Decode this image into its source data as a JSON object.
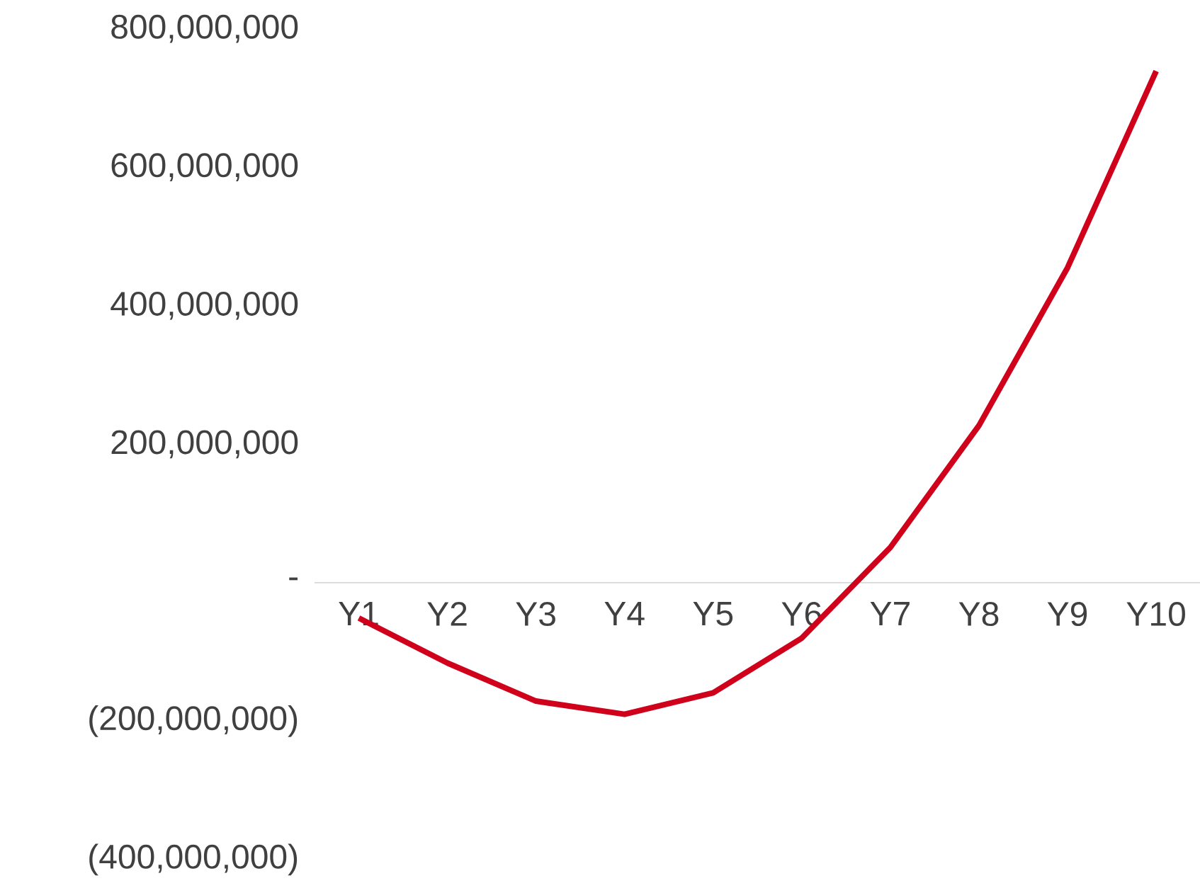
{
  "chart_data": {
    "type": "line",
    "categories": [
      "Y1",
      "Y2",
      "Y3",
      "Y4",
      "Y5",
      "Y6",
      "Y7",
      "Y8",
      "Y9",
      "Y10"
    ],
    "series": [
      {
        "color": "#d0021b",
        "values": [
          -51000000,
          -116000000,
          -171000000,
          -190000000,
          -159000000,
          -80000000,
          51000000,
          227000000,
          455000000,
          739000000
        ]
      }
    ],
    "ylim": [
      -400000000,
      800000000
    ],
    "yticks": [
      {
        "value": -400000000,
        "label": "(400,000,000)"
      },
      {
        "value": -200000000,
        "label": "(200,000,000)"
      },
      {
        "value": 0,
        "label": "-"
      },
      {
        "value": 200000000,
        "label": "200,000,000"
      },
      {
        "value": 400000000,
        "label": "400,000,000"
      },
      {
        "value": 600000000,
        "label": "600,000,000"
      },
      {
        "value": 800000000,
        "label": "800,000,000"
      }
    ]
  }
}
